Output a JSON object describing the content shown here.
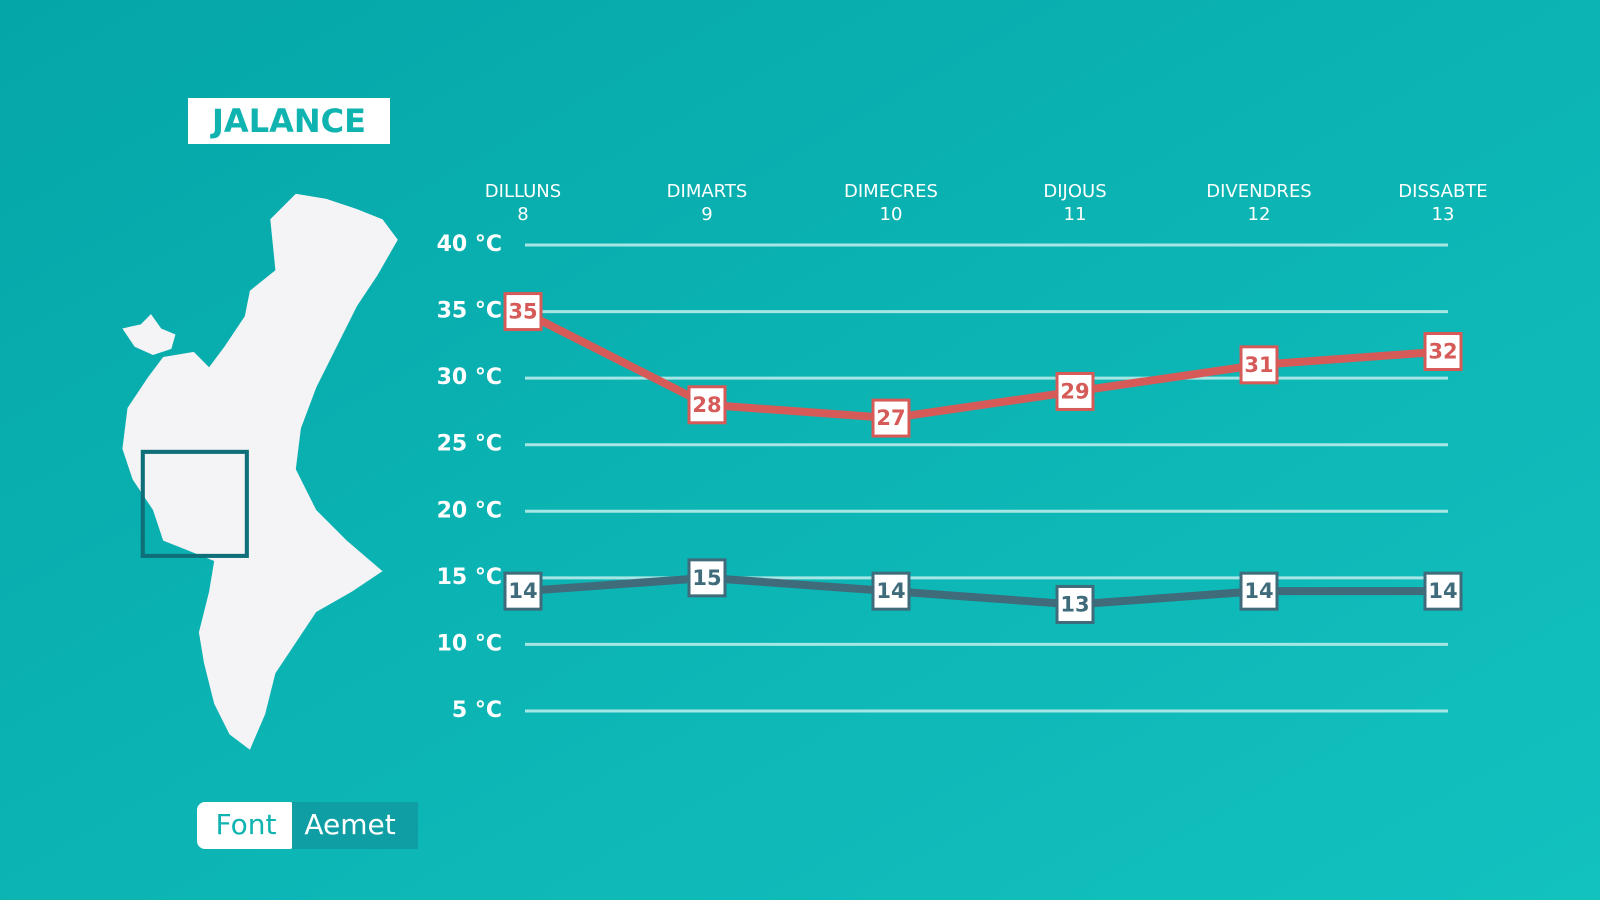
{
  "title": "JALANCE",
  "source": {
    "label": "Font",
    "name": "Aemet"
  },
  "chart_data": {
    "type": "line",
    "categories": [
      "DILLUNS",
      "DIMARTS",
      "DIMECRES",
      "DIJOUS",
      "DIVENDRES",
      "DISSABTE"
    ],
    "day_numbers": [
      "8",
      "9",
      "10",
      "11",
      "12",
      "13"
    ],
    "series": [
      {
        "color": "#d65a57",
        "values": [
          35,
          28,
          27,
          29,
          31,
          32
        ]
      },
      {
        "color": "#3f6b7b",
        "values": [
          14,
          15,
          14,
          13,
          14,
          14
        ]
      }
    ],
    "ylim": [
      5,
      40
    ],
    "yticks": [
      {
        "value": 5,
        "label": "5 °C"
      },
      {
        "value": 10,
        "label": "10 °C"
      },
      {
        "value": 15,
        "label": "15 °C"
      },
      {
        "value": 20,
        "label": "20 °C"
      },
      {
        "value": 25,
        "label": "25 °C"
      },
      {
        "value": 30,
        "label": "30 °C"
      },
      {
        "value": 35,
        "label": "35 °C"
      },
      {
        "value": 40,
        "label": "40 °C"
      }
    ],
    "grid": true
  }
}
